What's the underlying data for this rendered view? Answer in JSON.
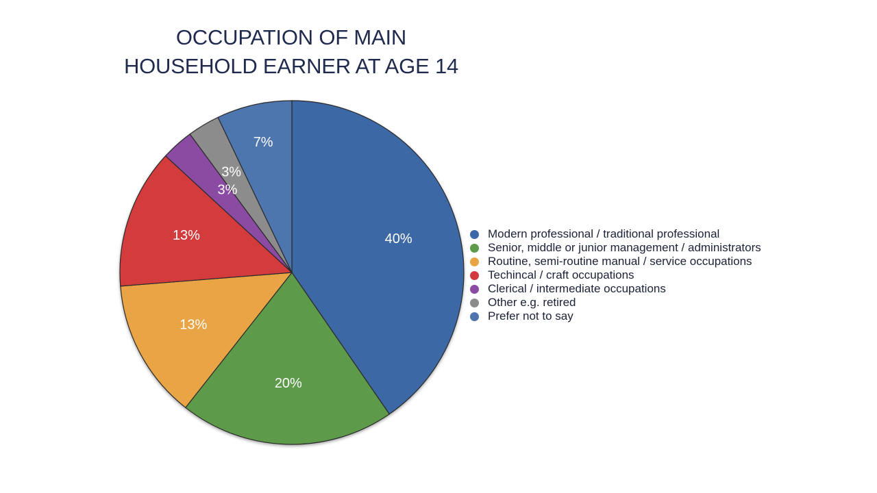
{
  "chart_data": {
    "type": "pie",
    "title_lines": [
      "OCCUPATION OF MAIN",
      "HOUSEHOLD EARNER AT AGE 14"
    ],
    "slices": [
      {
        "label": "Modern professional / traditional professional",
        "value": 40,
        "value_label": "40%",
        "color": "#3d67a6"
      },
      {
        "label": "Senior, middle or junior management / administrators",
        "value": 20,
        "value_label": "20%",
        "color": "#5d9a4a"
      },
      {
        "label": "Routine, semi-routine manual / service occupations",
        "value": 13,
        "value_label": "13%",
        "color": "#e9a445"
      },
      {
        "label": "Techincal / craft occupations",
        "value": 13,
        "value_label": "13%",
        "color": "#d33a3d"
      },
      {
        "label": "Clerical / intermediate occupations",
        "value": 3,
        "value_label": "3%",
        "color": "#8b4ba3"
      },
      {
        "label": "Other e.g. retired",
        "value": 3,
        "value_label": "3%",
        "color": "#8c8c8c"
      },
      {
        "label": "Prefer not to say",
        "value": 7,
        "value_label": "7%",
        "color": "#4d74ae"
      }
    ],
    "start": "12 o'clock",
    "direction": "clockwise",
    "legend_position": "right"
  }
}
